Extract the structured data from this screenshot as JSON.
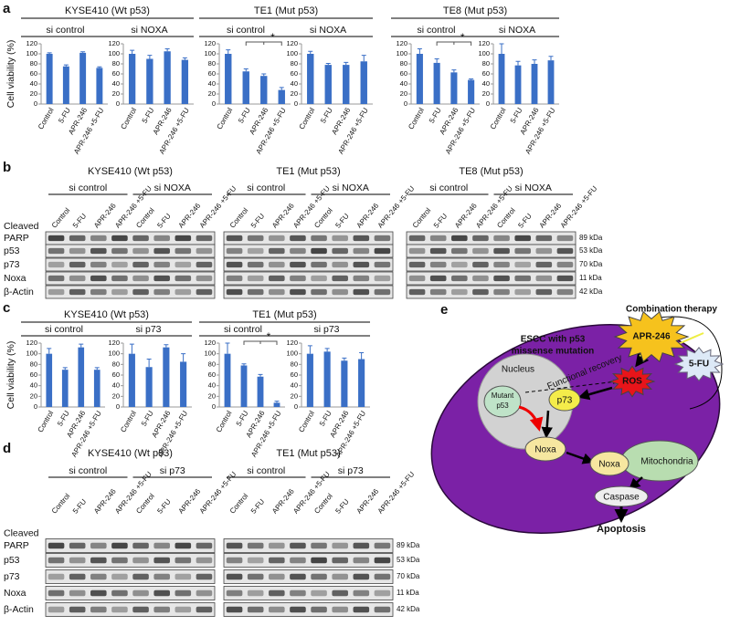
{
  "panels": {
    "a": {
      "label": "a",
      "y_label": "Cell viability (%)",
      "groups": [
        "KYSE410 (Wt p53)",
        "TE1 (Mut p53)",
        "TE8 (Mut p53)"
      ]
    },
    "c": {
      "label": "c",
      "y_label": "Cell viability (%)",
      "groups": [
        "KYSE410 (Wt p53)",
        "TE1 (Mut p53)"
      ]
    }
  },
  "chart_data": [
    {
      "type": "bar",
      "title": "si control",
      "categories": [
        "Control",
        "5-FU",
        "APR-246",
        "APR-246 +5-FU"
      ],
      "values": [
        100,
        75,
        102,
        72
      ],
      "errors": [
        2,
        3,
        2,
        2
      ],
      "color": "#3a6fc6",
      "ylim": [
        0,
        120
      ],
      "yticks": [
        0,
        20,
        40,
        60,
        80,
        100,
        120
      ]
    },
    {
      "type": "bar",
      "title": "si NOXA",
      "categories": [
        "Control",
        "5-FU",
        "APR-246",
        "APR-246 +5-FU"
      ],
      "values": [
        100,
        90,
        105,
        88
      ],
      "errors": [
        7,
        7,
        5,
        4
      ],
      "color": "#3a6fc6",
      "ylim": [
        0,
        120
      ],
      "yticks": [
        0,
        20,
        40,
        60,
        80,
        100,
        120
      ]
    },
    {
      "type": "bar",
      "title": "si control",
      "categories": [
        "Control",
        "5-FU",
        "APR-246",
        "APR-246 +5-FU"
      ],
      "values": [
        100,
        65,
        56,
        28
      ],
      "errors": [
        8,
        5,
        4,
        5
      ],
      "color": "#3a6fc6",
      "ylim": [
        0,
        120
      ],
      "yticks": [
        0,
        20,
        40,
        60,
        80,
        100,
        120
      ],
      "annotation": "*"
    },
    {
      "type": "bar",
      "title": "si NOXA",
      "categories": [
        "Control",
        "5-FU",
        "APR-246",
        "APR-246 +5-FU"
      ],
      "values": [
        100,
        78,
        78,
        85
      ],
      "errors": [
        5,
        3,
        5,
        12
      ],
      "color": "#3a6fc6",
      "ylim": [
        0,
        120
      ],
      "yticks": [
        0,
        20,
        40,
        60,
        80,
        100,
        120
      ]
    },
    {
      "type": "bar",
      "title": "si control",
      "categories": [
        "Control",
        "5-FU",
        "APR-246",
        "APR-246 +5-FU"
      ],
      "values": [
        100,
        82,
        63,
        48
      ],
      "errors": [
        10,
        8,
        5,
        2
      ],
      "color": "#3a6fc6",
      "ylim": [
        0,
        120
      ],
      "yticks": [
        0,
        20,
        40,
        60,
        80,
        100,
        120
      ],
      "annotation": "*"
    },
    {
      "type": "bar",
      "title": "si NOXA",
      "categories": [
        "Control",
        "5-FU",
        "APR-246",
        "APR-246 +5-FU"
      ],
      "values": [
        100,
        77,
        80,
        87
      ],
      "errors": [
        20,
        8,
        8,
        8
      ],
      "color": "#3a6fc6",
      "ylim": [
        0,
        120
      ],
      "yticks": [
        0,
        20,
        40,
        60,
        80,
        100,
        120
      ]
    },
    {
      "type": "bar",
      "title": "si control",
      "categories": [
        "Control",
        "5-FU",
        "APR-246",
        "APR-246 +5-FU"
      ],
      "values": [
        100,
        70,
        112,
        70
      ],
      "errors": [
        10,
        4,
        6,
        4
      ],
      "color": "#3a6fc6",
      "ylim": [
        0,
        120
      ],
      "yticks": [
        0,
        20,
        40,
        60,
        80,
        100,
        120
      ]
    },
    {
      "type": "bar",
      "title": "si p73",
      "categories": [
        "Control",
        "5-FU",
        "APR-246",
        "APR-246 +5-FU"
      ],
      "values": [
        100,
        75,
        112,
        85
      ],
      "errors": [
        18,
        15,
        5,
        15
      ],
      "color": "#3a6fc6",
      "ylim": [
        0,
        120
      ],
      "yticks": [
        0,
        20,
        40,
        60,
        80,
        100,
        120
      ]
    },
    {
      "type": "bar",
      "title": "si control",
      "categories": [
        "Control",
        "5-FU",
        "APR-246",
        "APR-246 +5-FU"
      ],
      "values": [
        100,
        78,
        57,
        8
      ],
      "errors": [
        20,
        3,
        4,
        3
      ],
      "color": "#3a6fc6",
      "ylim": [
        0,
        120
      ],
      "yticks": [
        0,
        20,
        40,
        60,
        80,
        100,
        120
      ],
      "annotation": "*"
    },
    {
      "type": "bar",
      "title": "si p73",
      "categories": [
        "Control",
        "5-FU",
        "APR-246",
        "APR-246 +5-FU"
      ],
      "values": [
        100,
        104,
        87,
        90
      ],
      "errors": [
        15,
        6,
        5,
        12
      ],
      "color": "#3a6fc6",
      "ylim": [
        0,
        120
      ],
      "yticks": [
        0,
        20,
        40,
        60,
        80,
        100,
        120
      ]
    }
  ],
  "blots": {
    "b": {
      "label": "b",
      "groups": [
        {
          "title": "KYSE410 (Wt p53)",
          "subgroups": [
            "si control",
            "si NOXA"
          ]
        },
        {
          "title": "TE1 (Mut p53)",
          "subgroups": [
            "si control",
            "si NOXA"
          ]
        },
        {
          "title": "TE8 (Mut p53)",
          "subgroups": [
            "si control",
            "si NOXA"
          ]
        }
      ],
      "lanes": [
        "Control",
        "5-FU",
        "APR-246",
        "APR-246 +5-FU"
      ],
      "row_prefix": "Cleaved",
      "rows": [
        "PARP",
        "p53",
        "p73",
        "Noxa",
        "β-Actin"
      ],
      "markers": [
        "89 kDa",
        "53 kDa",
        "70 kDa",
        "11 kDa",
        "42 kDa"
      ]
    },
    "d": {
      "label": "d",
      "groups": [
        {
          "title": "KYSE410 (Wt p53)",
          "subgroups": [
            "si control",
            "si p73"
          ]
        },
        {
          "title": "TE1 (Mut p53)",
          "subgroups": [
            "si control",
            "si p73"
          ]
        }
      ],
      "lanes": [
        "Control",
        "5-FU",
        "APR-246",
        "APR-246 +5-FU"
      ],
      "row_prefix": "Cleaved",
      "rows": [
        "PARP",
        "p53",
        "p73",
        "Noxa",
        "β-Actin"
      ],
      "markers": [
        "89 kDa",
        "53 kDa",
        "70 kDa",
        "11 kDa",
        "42 kDa"
      ]
    }
  },
  "diagram": {
    "label": "e",
    "therapy": "Combination therapy",
    "drug_1": "APR-246",
    "drug_2": "5-FU",
    "cell": [
      "ESCC with p53",
      "missense mutation"
    ],
    "nucleus": "Nucleus",
    "mutant": [
      "Mutant",
      "p53"
    ],
    "recovery": "Functional recovery",
    "ros": "ROS",
    "p73": "p73",
    "noxa_1": "Noxa",
    "noxa_2": "Noxa",
    "mitochondria": "Mitochondria",
    "caspase": "Caspase",
    "apoptosis": "Apoptosis"
  }
}
